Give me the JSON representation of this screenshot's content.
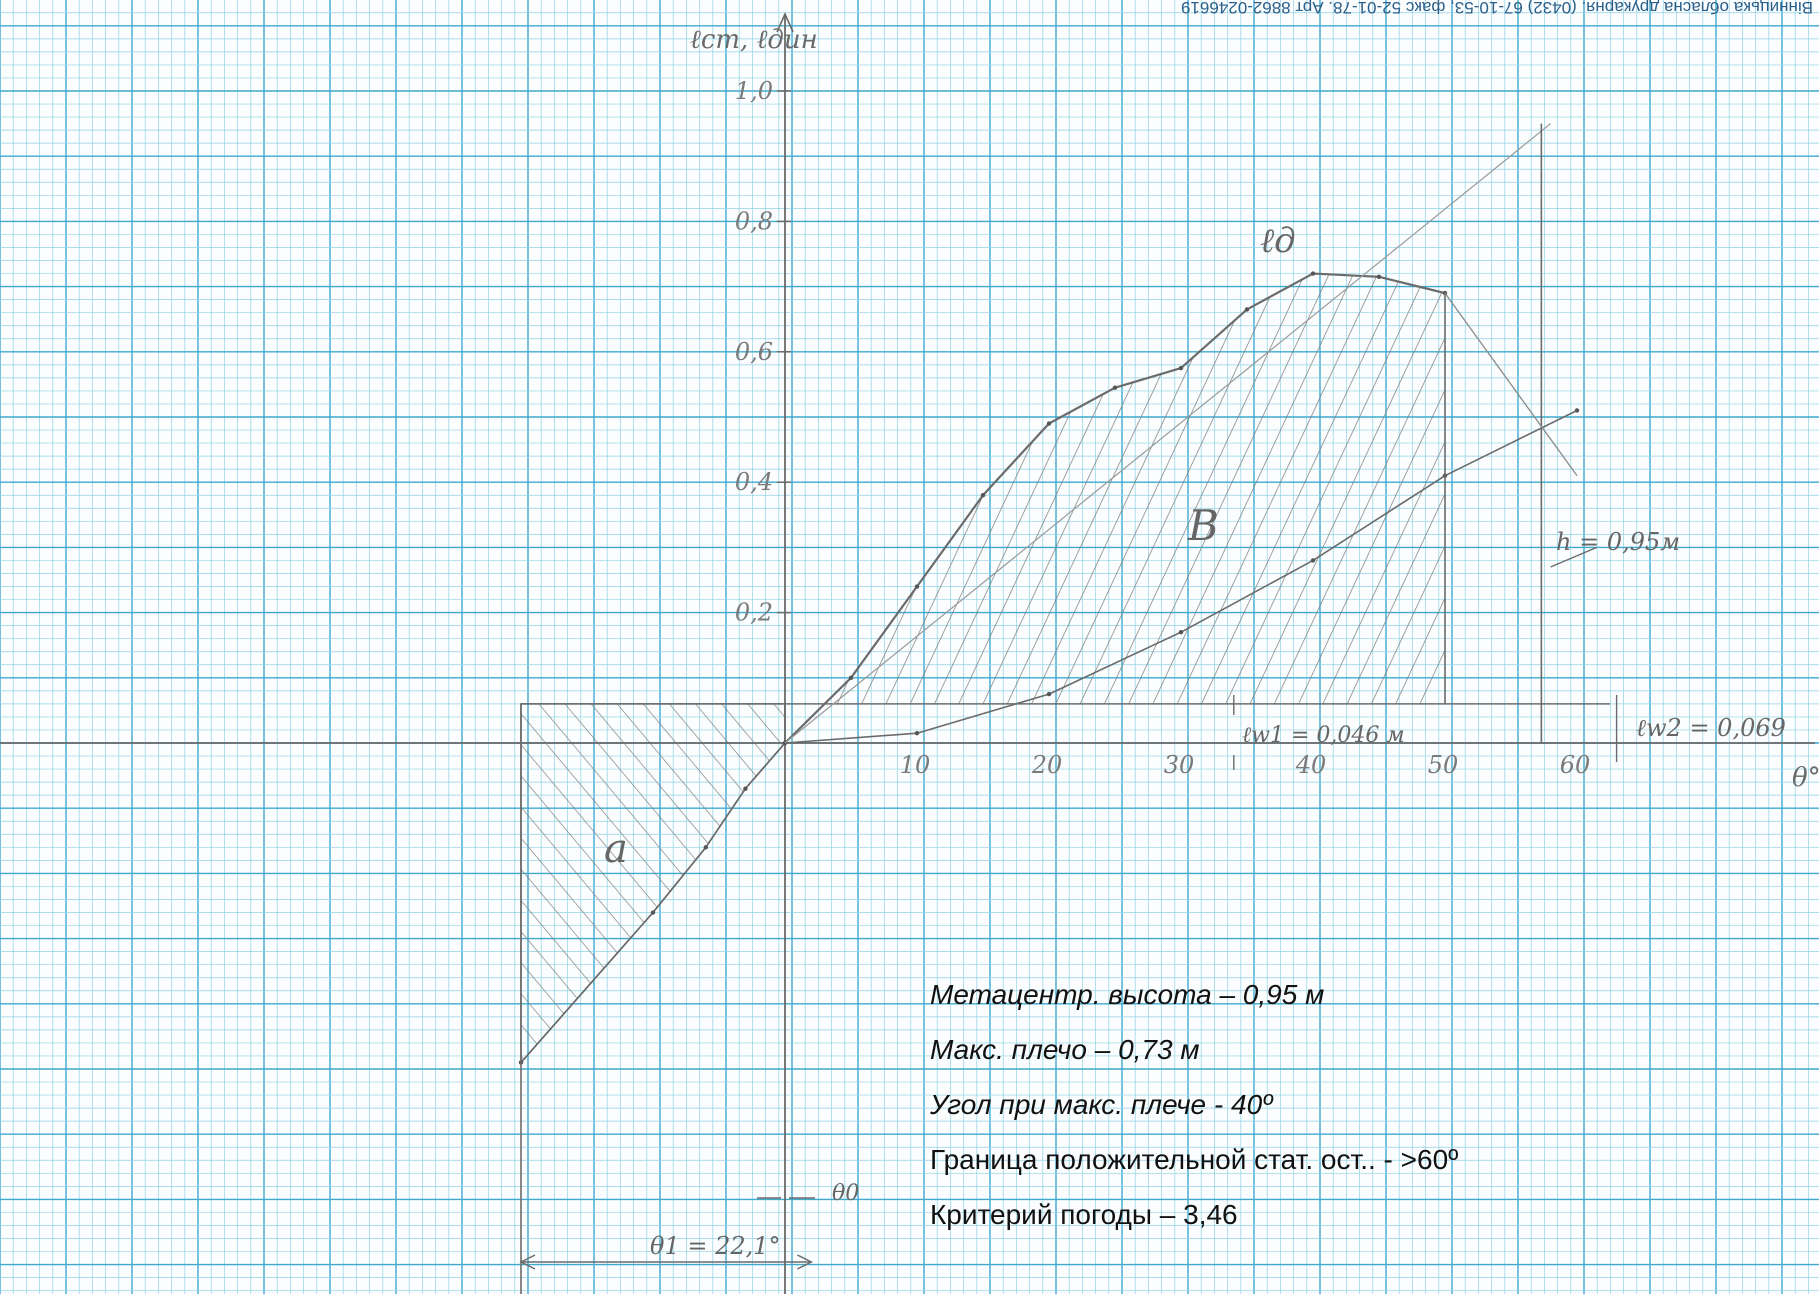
{
  "header": {
    "text": "Вінницька обласна друкарня. (0432) 67-10-53, факс 52-01-78. Арт 8862-0246619"
  },
  "chart_data": {
    "type": "line",
    "ylabel": "ℓст, ℓдин",
    "xlabel": "θ°",
    "x_ticks": [
      "10",
      "20",
      "30",
      "40",
      "50",
      "60"
    ],
    "y_ticks": [
      "0,2",
      "0,4",
      "0,6",
      "0,8",
      "1,0"
    ],
    "xlim": [
      -20,
      78
    ],
    "ylim": [
      -0.85,
      1.1
    ],
    "series": [
      {
        "name": "ℓд",
        "x": [
          0,
          5,
          10,
          15,
          20,
          25,
          30,
          35,
          40,
          45,
          50
        ],
        "y": [
          0.0,
          0.1,
          0.24,
          0.38,
          0.49,
          0.545,
          0.575,
          0.665,
          0.72,
          0.715,
          0.69
        ]
      },
      {
        "name": "",
        "x": [
          0,
          10,
          20,
          30,
          40,
          50,
          60
        ],
        "y": [
          0.0,
          0.015,
          0.075,
          0.17,
          0.28,
          0.41,
          0.51
        ]
      },
      {
        "name": "",
        "x": [
          -20,
          -10,
          -6,
          -3,
          0
        ],
        "y": [
          -0.49,
          -0.26,
          -0.16,
          -0.07,
          0.0
        ]
      }
    ],
    "wind_levels": [
      0.06,
      0.06
    ],
    "metacentric_height_line": {
      "x": [
        0,
        58
      ],
      "y": [
        0,
        0.95
      ]
    },
    "annotations": {
      "area_a": "a",
      "area_b": "B",
      "curve_label": "ℓд",
      "lw1": "ℓw1 = 0,046 м",
      "lw2": "ℓw2 = 0,069",
      "h": "h = 0,95м",
      "theta0": "θ0",
      "theta1": "θ1 = 22,1°"
    }
  },
  "notes": [
    "Метацентр. высота – 0,95 м",
    "Макс. плечо – 0,73 м",
    "Угол при макс. плече - 40º",
    "Граница положительной стат. ост.. - >60º",
    "Критерий погоды – 3,46"
  ],
  "colors": {
    "grid_minor": "#8fd3e6",
    "grid_major": "#3fa9cf",
    "pencil": "#707070"
  }
}
